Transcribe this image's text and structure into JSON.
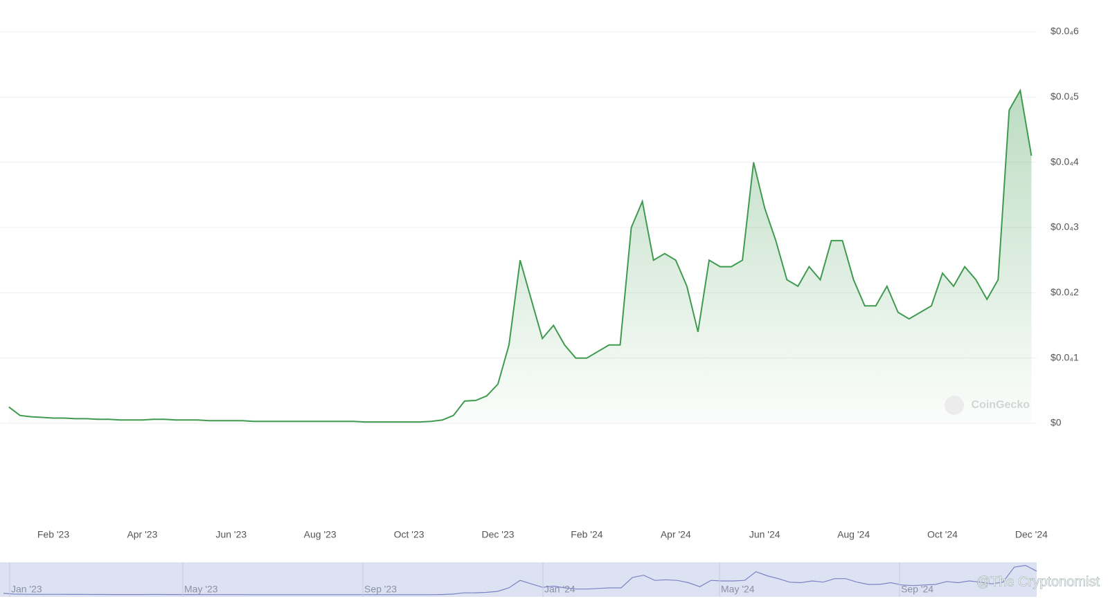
{
  "chart_data": {
    "type": "line",
    "categories": [
      null,
      null,
      null,
      null,
      "Feb '23",
      null,
      null,
      null,
      null,
      null,
      null,
      null,
      "Apr '23",
      null,
      null,
      null,
      null,
      null,
      null,
      null,
      "Jun '23",
      null,
      null,
      null,
      null,
      null,
      null,
      null,
      "Aug '23",
      null,
      null,
      null,
      null,
      null,
      null,
      null,
      "Oct '23",
      null,
      null,
      null,
      null,
      null,
      null,
      null,
      "Dec '23",
      null,
      null,
      null,
      null,
      null,
      null,
      null,
      "Feb '24",
      null,
      null,
      null,
      null,
      null,
      null,
      null,
      "Apr '24",
      null,
      null,
      null,
      null,
      null,
      null,
      null,
      "Jun '24",
      null,
      null,
      null,
      null,
      null,
      null,
      null,
      "Aug '24",
      null,
      null,
      null,
      null,
      null,
      null,
      null,
      "Oct '24",
      null,
      null,
      null,
      null,
      null,
      null,
      null,
      "Dec '24"
    ],
    "series": [
      {
        "color": "#3f9a4f",
        "values": [
          2.5e-06,
          1.2e-06,
          1e-06,
          9e-07,
          8e-07,
          8e-07,
          7e-07,
          7e-07,
          6e-07,
          6e-07,
          5e-07,
          5e-07,
          5e-07,
          6e-07,
          6e-07,
          5e-07,
          5e-07,
          5e-07,
          4e-07,
          4e-07,
          4e-07,
          4e-07,
          3e-07,
          3e-07,
          3e-07,
          3e-07,
          3e-07,
          3e-07,
          3e-07,
          3e-07,
          3e-07,
          3e-07,
          2e-07,
          2e-07,
          2e-07,
          2e-07,
          2e-07,
          2e-07,
          3e-07,
          5e-07,
          1.2e-06,
          3.4e-06,
          3.5e-06,
          4.2e-06,
          6e-06,
          1.2e-05,
          2.5e-05,
          1.9e-05,
          1.3e-05,
          1.5e-05,
          1.2e-05,
          1e-05,
          1e-05,
          1.1e-05,
          1.2e-05,
          1.2e-05,
          3e-05,
          3.4e-05,
          2.5e-05,
          2.6e-05,
          2.5e-05,
          2.1e-05,
          1.4e-05,
          2.5e-05,
          2.4e-05,
          2.4e-05,
          2.5e-05,
          4e-05,
          3.3e-05,
          2.8e-05,
          2.2e-05,
          2.1e-05,
          2.4e-05,
          2.2e-05,
          2.8e-05,
          2.8e-05,
          2.2e-05,
          1.8e-05,
          1.8e-05,
          2.1e-05,
          1.7e-05,
          1.6e-05,
          1.7e-05,
          1.8e-05,
          2.3e-05,
          2.1e-05,
          2.4e-05,
          2.2e-05,
          1.9e-05,
          2.2e-05,
          4.8e-05,
          5.1e-05,
          4.1e-05
        ]
      }
    ],
    "ylim": [
      0,
      6e-05
    ],
    "yticks": [
      {
        "value": 0,
        "label": "$0"
      },
      {
        "value": 1e-05,
        "label": "$0.0₄1"
      },
      {
        "value": 2e-05,
        "label": "$0.0₄2"
      },
      {
        "value": 3e-05,
        "label": "$0.0₄3"
      },
      {
        "value": 4e-05,
        "label": "$0.0₄4"
      },
      {
        "value": 5e-05,
        "label": "$0.0₄5"
      },
      {
        "value": 6e-05,
        "label": "$0.0₄6"
      }
    ],
    "grid": true,
    "watermark": "CoinGecko",
    "navigator_labels": [
      "Jan '23",
      "May '23",
      "Sep '23",
      "Jan '24",
      "May '24",
      "Sep '24"
    ],
    "credit": "@The Cryptonomist"
  }
}
